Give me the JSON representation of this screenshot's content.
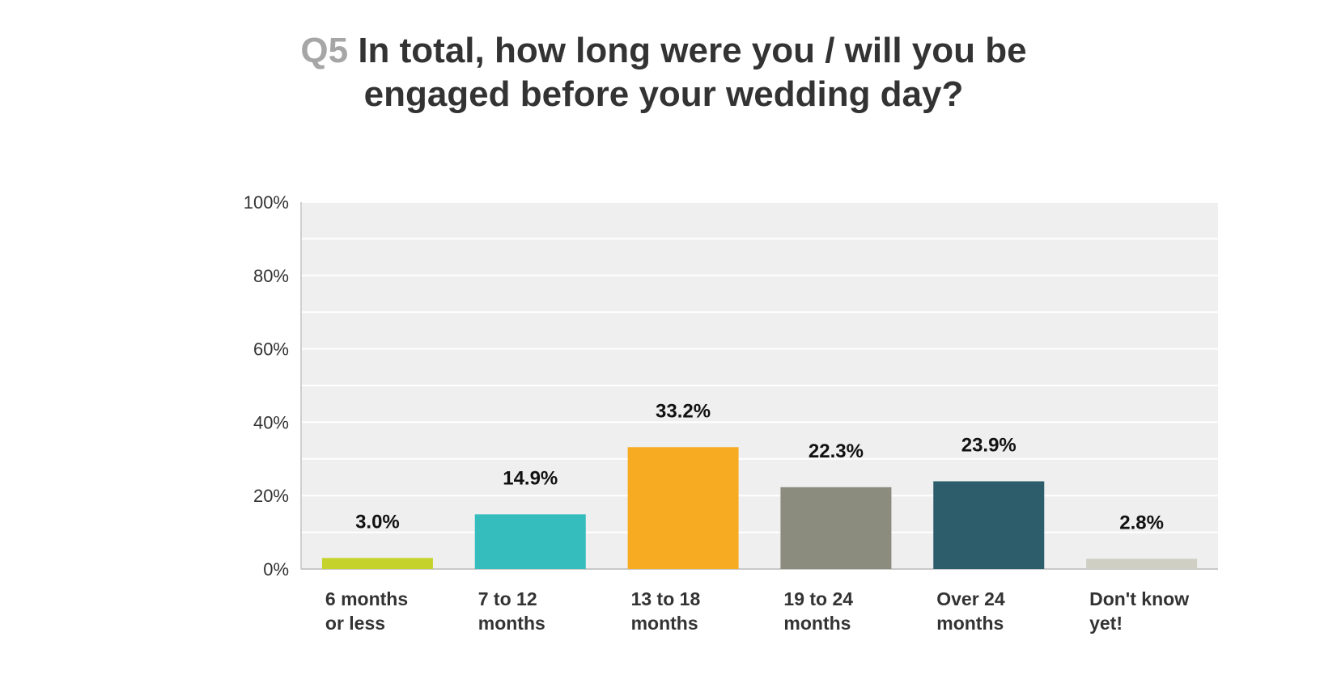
{
  "chart_data": {
    "type": "bar",
    "title_prefix": "Q5",
    "title_line1": "In total, how long were you / will you be",
    "title_line2": "engaged before your wedding day?",
    "categories": [
      [
        "6 months",
        "or less"
      ],
      [
        "7 to 12",
        "months"
      ],
      [
        "13 to 18",
        "months"
      ],
      [
        "19 to 24",
        "months"
      ],
      [
        "Over 24",
        "months"
      ],
      [
        "Don't know",
        "yet!"
      ]
    ],
    "values": [
      3.0,
      14.9,
      33.2,
      22.3,
      23.9,
      2.8
    ],
    "data_labels": [
      "3.0%",
      "14.9%",
      "33.2%",
      "22.3%",
      "23.9%",
      "2.8%"
    ],
    "colors": [
      "#c5d22b",
      "#35bcbd",
      "#f7ab22",
      "#8c8c7e",
      "#2d5d6b",
      "#cfcfc4"
    ],
    "ylim": [
      0,
      100
    ],
    "yticks": [
      0,
      20,
      40,
      60,
      80,
      100
    ],
    "ytick_labels": [
      "0%",
      "20%",
      "40%",
      "60%",
      "80%",
      "100%"
    ],
    "xlabel": "",
    "ylabel": "",
    "grid": true,
    "plot_background": "#efefef",
    "gridline_color": "#ffffff"
  }
}
